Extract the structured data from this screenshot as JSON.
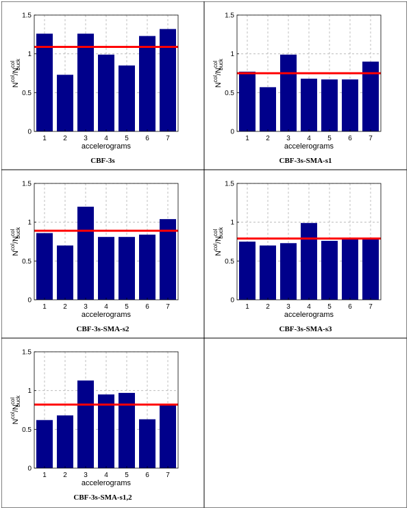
{
  "chart_data": [
    {
      "type": "bar",
      "caption": "CBF-3s",
      "xlabel": "accelerograms",
      "ylabel": {
        "base1": "N",
        "sup1": "col",
        "sep": "/N",
        "sup2": "col",
        "sub2": "buck"
      },
      "categories": [
        "1",
        "2",
        "3",
        "4",
        "5",
        "6",
        "7"
      ],
      "values": [
        1.26,
        0.73,
        1.26,
        0.99,
        0.85,
        1.23,
        1.32
      ],
      "mean_line": 1.09,
      "ylim": [
        0,
        1.5
      ],
      "yticks": [
        "0",
        "0.5",
        "1",
        "1.5"
      ],
      "grid": true,
      "bar_color": "#00008b",
      "line_color": "#ff0000"
    },
    {
      "type": "bar",
      "caption": "CBF-3s-SMA-s1",
      "xlabel": "accelerograms",
      "ylabel": {
        "base1": "N",
        "sup1": "col",
        "sep": "/N",
        "sup2": "col",
        "sub2": "buck"
      },
      "categories": [
        "1",
        "2",
        "3",
        "4",
        "5",
        "6",
        "7"
      ],
      "values": [
        0.77,
        0.57,
        0.99,
        0.68,
        0.67,
        0.67,
        0.9
      ],
      "mean_line": 0.75,
      "ylim": [
        0,
        1.5
      ],
      "yticks": [
        "0",
        "0.5",
        "1",
        "1.5"
      ],
      "grid": true,
      "bar_color": "#00008b",
      "line_color": "#ff0000"
    },
    {
      "type": "bar",
      "caption": "CBF-3s-SMA-s2",
      "xlabel": "accelerograms",
      "ylabel": {
        "base1": "N",
        "sup1": "col",
        "sep": "/N",
        "sup2": "col",
        "sub2": "buck"
      },
      "categories": [
        "1",
        "2",
        "3",
        "4",
        "5",
        "6",
        "7"
      ],
      "values": [
        0.86,
        0.7,
        1.2,
        0.81,
        0.81,
        0.84,
        1.04
      ],
      "mean_line": 0.89,
      "ylim": [
        0,
        1.5
      ],
      "yticks": [
        "0",
        "0.5",
        "1",
        "1.5"
      ],
      "grid": true,
      "bar_color": "#00008b",
      "line_color": "#ff0000"
    },
    {
      "type": "bar",
      "caption": "CBF-3s-SMA-s3",
      "xlabel": "accelerograms",
      "ylabel": {
        "base1": "N",
        "sup1": "col",
        "sep": "/N",
        "sup2": "col",
        "sub2": "buck"
      },
      "categories": [
        "1",
        "2",
        "3",
        "4",
        "5",
        "6",
        "7"
      ],
      "values": [
        0.75,
        0.7,
        0.73,
        0.99,
        0.76,
        0.78,
        0.8
      ],
      "mean_line": 0.79,
      "ylim": [
        0,
        1.5
      ],
      "yticks": [
        "0",
        "0.5",
        "1",
        "1.5"
      ],
      "grid": true,
      "bar_color": "#00008b",
      "line_color": "#ff0000"
    },
    {
      "type": "bar",
      "caption": "CBF-3s-SMA-s1,2",
      "xlabel": "accelerograms",
      "ylabel": {
        "base1": "N",
        "sup1": "col",
        "sep": "/N",
        "sup2": "col",
        "sub2": "buck"
      },
      "categories": [
        "1",
        "2",
        "3",
        "4",
        "5",
        "6",
        "7"
      ],
      "values": [
        0.62,
        0.68,
        1.13,
        0.95,
        0.97,
        0.63,
        0.81
      ],
      "mean_line": 0.82,
      "ylim": [
        0,
        1.5
      ],
      "yticks": [
        "0",
        "0.5",
        "1",
        "1.5"
      ],
      "grid": true,
      "bar_color": "#00008b",
      "line_color": "#ff0000"
    }
  ]
}
